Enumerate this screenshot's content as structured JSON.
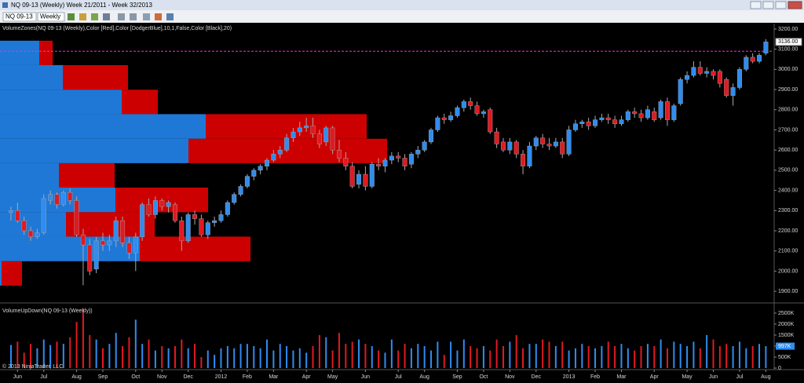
{
  "window": {
    "title": "NQ 09-13 (Weekly)  Week 21/2011 - Week 32/2013"
  },
  "toolbar": {
    "instrument": "NQ 09-13",
    "period": "Weekly"
  },
  "chart_data": {
    "type": "candlestick",
    "indicator_label": "VolumeZones(NQ 09-13 (Weekly),Color [Red],Color [DodgerBlue],10,1,False,Color [Black],20)",
    "colors": {
      "up": "#2f8cf0",
      "down": "#e01a22",
      "wick": "#a8a8a8"
    },
    "xlim": [
      -1.67,
      116.15
    ],
    "xticks": [
      {
        "value": 1,
        "label": "Jun"
      },
      {
        "value": 5,
        "label": "Jul"
      },
      {
        "value": 10,
        "label": "Aug"
      },
      {
        "value": 14,
        "label": "Sep"
      },
      {
        "value": 19,
        "label": "Oct"
      },
      {
        "value": 23,
        "label": "Nov"
      },
      {
        "value": 27,
        "label": "Dec"
      },
      {
        "value": 32,
        "label": "2012"
      },
      {
        "value": 36,
        "label": "Feb"
      },
      {
        "value": 40,
        "label": "Mar"
      },
      {
        "value": 45,
        "label": "Apr"
      },
      {
        "value": 49,
        "label": "May"
      },
      {
        "value": 54,
        "label": "Jun"
      },
      {
        "value": 59,
        "label": "Jul"
      },
      {
        "value": 63,
        "label": "Aug"
      },
      {
        "value": 68,
        "label": "Sep"
      },
      {
        "value": 72,
        "label": "Oct"
      },
      {
        "value": 76,
        "label": "Nov"
      },
      {
        "value": 80,
        "label": "Dec"
      },
      {
        "value": 85,
        "label": "2013"
      },
      {
        "value": 89,
        "label": "Feb"
      },
      {
        "value": 93,
        "label": "Mar"
      },
      {
        "value": 98,
        "label": "Apr"
      },
      {
        "value": 103,
        "label": "May"
      },
      {
        "value": 107,
        "label": "Jun"
      },
      {
        "value": 111,
        "label": "Jul"
      },
      {
        "value": 115,
        "label": "Aug"
      }
    ],
    "ylim": [
      1850,
      3227
    ],
    "yticks": [
      {
        "value": 1900,
        "label": "1900.00"
      },
      {
        "value": 2000,
        "label": "2000.00"
      },
      {
        "value": 2100,
        "label": "2100.00"
      },
      {
        "value": 2200,
        "label": "2200.00"
      },
      {
        "value": 2300,
        "label": "2300.00"
      },
      {
        "value": 2400,
        "label": "2400.00"
      },
      {
        "value": 2500,
        "label": "2500.00"
      },
      {
        "value": 2600,
        "label": "2600.00"
      },
      {
        "value": 2700,
        "label": "2700.00"
      },
      {
        "value": 2800,
        "label": "2800.00"
      },
      {
        "value": 2900,
        "label": "2900.00"
      },
      {
        "value": 3000,
        "label": "3000.00"
      },
      {
        "value": 3100,
        "label": "3100.00"
      },
      {
        "value": 3200,
        "label": "3200.00"
      }
    ],
    "ohlc": [
      [
        2290,
        2320,
        2250,
        2300
      ],
      [
        2300,
        2340,
        2240,
        2250
      ],
      [
        2250,
        2270,
        2180,
        2200
      ],
      [
        2200,
        2220,
        2150,
        2170
      ],
      [
        2170,
        2210,
        2160,
        2190
      ],
      [
        2190,
        2380,
        2180,
        2360
      ],
      [
        2350,
        2400,
        2330,
        2380
      ],
      [
        2380,
        2390,
        2310,
        2330
      ],
      [
        2330,
        2400,
        2320,
        2390
      ],
      [
        2390,
        2410,
        2330,
        2350
      ],
      [
        2350,
        2370,
        2170,
        2180
      ],
      [
        2180,
        2210,
        1930,
        2130
      ],
      [
        2130,
        2160,
        1980,
        2000
      ],
      [
        2010,
        2170,
        1990,
        2150
      ],
      [
        2150,
        2190,
        2100,
        2130
      ],
      [
        2130,
        2180,
        2100,
        2150
      ],
      [
        2150,
        2270,
        2120,
        2250
      ],
      [
        2250,
        2270,
        2120,
        2140
      ],
      [
        2140,
        2170,
        2060,
        2090
      ],
      [
        2090,
        2190,
        2000,
        2170
      ],
      [
        2170,
        2340,
        2150,
        2330
      ],
      [
        2330,
        2360,
        2270,
        2280
      ],
      [
        2280,
        2370,
        2260,
        2350
      ],
      [
        2350,
        2360,
        2300,
        2320
      ],
      [
        2320,
        2350,
        2290,
        2340
      ],
      [
        2330,
        2340,
        2240,
        2250
      ],
      [
        2250,
        2270,
        2100,
        2150
      ],
      [
        2150,
        2290,
        2140,
        2280
      ],
      [
        2280,
        2300,
        2230,
        2260
      ],
      [
        2260,
        2280,
        2170,
        2180
      ],
      [
        2180,
        2250,
        2160,
        2240
      ],
      [
        2240,
        2270,
        2220,
        2250
      ],
      [
        2250,
        2300,
        2240,
        2280
      ],
      [
        2280,
        2350,
        2270,
        2340
      ],
      [
        2340,
        2390,
        2330,
        2380
      ],
      [
        2380,
        2430,
        2370,
        2420
      ],
      [
        2420,
        2480,
        2410,
        2470
      ],
      [
        2470,
        2510,
        2450,
        2500
      ],
      [
        2500,
        2530,
        2480,
        2520
      ],
      [
        2520,
        2560,
        2500,
        2550
      ],
      [
        2550,
        2600,
        2540,
        2580
      ],
      [
        2580,
        2620,
        2560,
        2600
      ],
      [
        2600,
        2680,
        2590,
        2660
      ],
      [
        2660,
        2710,
        2640,
        2690
      ],
      [
        2690,
        2740,
        2670,
        2710
      ],
      [
        2710,
        2760,
        2690,
        2720
      ],
      [
        2720,
        2760,
        2660,
        2680
      ],
      [
        2680,
        2700,
        2610,
        2630
      ],
      [
        2640,
        2720,
        2620,
        2710
      ],
      [
        2710,
        2720,
        2580,
        2600
      ],
      [
        2600,
        2650,
        2540,
        2560
      ],
      [
        2560,
        2590,
        2500,
        2520
      ],
      [
        2520,
        2540,
        2410,
        2420
      ],
      [
        2430,
        2500,
        2410,
        2480
      ],
      [
        2480,
        2520,
        2400,
        2420
      ],
      [
        2420,
        2540,
        2410,
        2530
      ],
      [
        2530,
        2560,
        2500,
        2520
      ],
      [
        2520,
        2560,
        2490,
        2550
      ],
      [
        2550,
        2590,
        2530,
        2570
      ],
      [
        2570,
        2590,
        2540,
        2560
      ],
      [
        2560,
        2580,
        2500,
        2520
      ],
      [
        2530,
        2590,
        2510,
        2580
      ],
      [
        2580,
        2620,
        2560,
        2600
      ],
      [
        2600,
        2650,
        2590,
        2640
      ],
      [
        2640,
        2710,
        2630,
        2700
      ],
      [
        2700,
        2770,
        2690,
        2760
      ],
      [
        2760,
        2780,
        2730,
        2750
      ],
      [
        2750,
        2790,
        2740,
        2770
      ],
      [
        2770,
        2820,
        2760,
        2810
      ],
      [
        2810,
        2850,
        2790,
        2840
      ],
      [
        2840,
        2860,
        2800,
        2820
      ],
      [
        2820,
        2840,
        2770,
        2780
      ],
      [
        2780,
        2800,
        2760,
        2790
      ],
      [
        2800,
        2810,
        2680,
        2690
      ],
      [
        2690,
        2710,
        2610,
        2630
      ],
      [
        2640,
        2660,
        2590,
        2600
      ],
      [
        2600,
        2660,
        2580,
        2640
      ],
      [
        2640,
        2650,
        2560,
        2580
      ],
      [
        2580,
        2600,
        2480,
        2520
      ],
      [
        2520,
        2640,
        2510,
        2620
      ],
      [
        2620,
        2670,
        2600,
        2660
      ],
      [
        2660,
        2680,
        2610,
        2630
      ],
      [
        2630,
        2660,
        2600,
        2620
      ],
      [
        2620,
        2660,
        2610,
        2640
      ],
      [
        2640,
        2660,
        2560,
        2580
      ],
      [
        2580,
        2720,
        2570,
        2700
      ],
      [
        2700,
        2750,
        2690,
        2730
      ],
      [
        2730,
        2750,
        2710,
        2740
      ],
      [
        2740,
        2760,
        2700,
        2720
      ],
      [
        2720,
        2770,
        2710,
        2750
      ],
      [
        2750,
        2780,
        2740,
        2760
      ],
      [
        2760,
        2780,
        2730,
        2750
      ],
      [
        2750,
        2770,
        2710,
        2730
      ],
      [
        2730,
        2770,
        2720,
        2750
      ],
      [
        2750,
        2800,
        2740,
        2790
      ],
      [
        2790,
        2810,
        2760,
        2780
      ],
      [
        2780,
        2800,
        2740,
        2760
      ],
      [
        2760,
        2820,
        2750,
        2800
      ],
      [
        2790,
        2810,
        2740,
        2750
      ],
      [
        2760,
        2850,
        2750,
        2840
      ],
      [
        2840,
        2860,
        2720,
        2750
      ],
      [
        2750,
        2830,
        2740,
        2820
      ],
      [
        2830,
        2960,
        2820,
        2950
      ],
      [
        2950,
        2990,
        2930,
        2970
      ],
      [
        2970,
        3040,
        2960,
        3010
      ],
      [
        3010,
        3040,
        2970,
        2980
      ],
      [
        2980,
        3010,
        2960,
        2990
      ],
      [
        2990,
        3000,
        2950,
        2970
      ],
      [
        2990,
        3000,
        2910,
        2930
      ],
      [
        2950,
        2960,
        2860,
        2870
      ],
      [
        2870,
        2930,
        2820,
        2910
      ],
      [
        2910,
        3010,
        2900,
        3000
      ],
      [
        3000,
        3070,
        2990,
        3060
      ],
      [
        3060,
        3080,
        3030,
        3040
      ],
      [
        3040,
        3080,
        3030,
        3070
      ],
      [
        3080,
        3150,
        3070,
        3136
      ]
    ],
    "reference_line": {
      "value": 3090,
      "color": "#ff2bd6"
    },
    "price_marker": {
      "value": 3136,
      "label": "3136.00"
    },
    "zones": {
      "up_color": "#1f78d6",
      "down_color": "#cc0000",
      "bands": [
        {
          "low": 3021,
          "high": 3142,
          "up": 50,
          "down": 17
        },
        {
          "low": 2899,
          "high": 3021,
          "up": 80,
          "down": 83
        },
        {
          "low": 2778,
          "high": 2899,
          "up": 155,
          "down": 46
        },
        {
          "low": 2656,
          "high": 2778,
          "up": 262,
          "down": 205
        },
        {
          "low": 2535,
          "high": 2656,
          "up": 240,
          "down": 253
        },
        {
          "low": 2414,
          "high": 2535,
          "up": 75,
          "down": 71
        },
        {
          "low": 2292,
          "high": 2414,
          "up": 147,
          "down": 118
        },
        {
          "low": 2171,
          "high": 2292,
          "up": 84,
          "down": 113
        },
        {
          "low": 2049,
          "high": 2171,
          "up": 178,
          "down": 141
        },
        {
          "low": 1928,
          "high": 2049,
          "up": 2,
          "down": 26
        }
      ]
    },
    "volume": {
      "label": "VolumeUpDown(NQ 09-13 (Weekly))",
      "ylim": [
        0,
        2890
      ],
      "yticks": [
        0,
        {
          "value": 500,
          "label": "500K"
        },
        {
          "value": 1000,
          "label": "1000K"
        },
        {
          "value": 1500,
          "label": "1500K"
        },
        {
          "value": 2000,
          "label": "2000K"
        },
        {
          "value": 2500,
          "label": "2500K"
        }
      ],
      "values": [
        1050,
        1200,
        700,
        1100,
        900,
        1300,
        1050,
        1200,
        1100,
        1400,
        2100,
        2700,
        1500,
        1300,
        900,
        1100,
        1600,
        1000,
        1400,
        2200,
        1100,
        1300,
        800,
        1000,
        900,
        1000,
        1300,
        900,
        1100,
        500,
        800,
        600,
        900,
        1000,
        900,
        1100,
        1100,
        1000,
        900,
        1300,
        800,
        1100,
        1000,
        800,
        900,
        700,
        1000,
        1500,
        1400,
        800,
        1600,
        1100,
        1200,
        1300,
        1100,
        1000,
        800,
        700,
        1300,
        800,
        1100,
        900,
        1100,
        1000,
        800,
        1200,
        600,
        1200,
        800,
        1300,
        1000,
        900,
        1000,
        800,
        1300,
        1000,
        1200,
        1500,
        900,
        1100,
        1100,
        1300,
        1200,
        1000,
        1200,
        800,
        900,
        1100,
        1000,
        900,
        1000,
        1200,
        1000,
        1100,
        900,
        800,
        1000,
        1100,
        1000,
        1300,
        900,
        1200,
        1100,
        1000,
        1200,
        900,
        1500,
        1300,
        1000,
        1100,
        1000,
        1200,
        900,
        1000,
        1100,
        997
      ],
      "marker": {
        "value": 997,
        "label": "997K"
      }
    },
    "copyright": "© 2013 NinjaTrader, LLC"
  }
}
